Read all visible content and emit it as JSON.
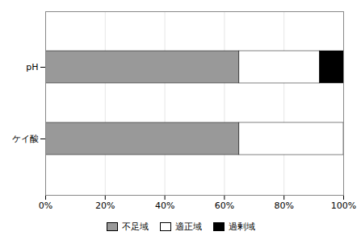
{
  "chart_data": {
    "type": "bar",
    "orientation": "horizontal",
    "stacked": true,
    "categories": [
      "pH",
      "ケイ酸"
    ],
    "series": [
      {
        "name": "不足域",
        "color": "#999999",
        "values": [
          65,
          65
        ]
      },
      {
        "name": "適正域",
        "color": "#ffffff",
        "values": [
          27,
          35
        ]
      },
      {
        "name": "過剰域",
        "color": "#000000",
        "values": [
          8,
          0
        ]
      }
    ],
    "xlim": [
      0,
      100
    ],
    "xticks": [
      {
        "value": 0,
        "label": "0%"
      },
      {
        "value": 20,
        "label": "20%"
      },
      {
        "value": 40,
        "label": "40%"
      },
      {
        "value": 60,
        "label": "60%"
      },
      {
        "value": 80,
        "label": "80%"
      },
      {
        "value": 100,
        "label": "100%"
      }
    ],
    "grid": true,
    "legend": "bottom"
  }
}
